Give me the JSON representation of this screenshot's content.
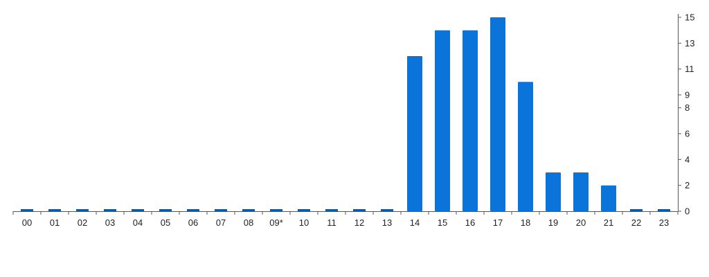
{
  "chart_data": {
    "type": "bar",
    "categories": [
      "00",
      "01",
      "02",
      "03",
      "04",
      "05",
      "06",
      "07",
      "08",
      "09*",
      "10",
      "11",
      "12",
      "13",
      "14",
      "15",
      "16",
      "17",
      "18",
      "19",
      "20",
      "21",
      "22",
      "23"
    ],
    "values": [
      0,
      0,
      0,
      0,
      0,
      0,
      0,
      0,
      0,
      0,
      0,
      0,
      0,
      0,
      12,
      14,
      14,
      15,
      10,
      3,
      3,
      2,
      0,
      0
    ],
    "title": "",
    "xlabel": "",
    "ylabel": "",
    "ylim": [
      0,
      15
    ],
    "y_ticks": [
      "0",
      "2",
      "4",
      "6",
      "8",
      "9",
      "11",
      "13",
      "15"
    ],
    "y_axis_side": "right",
    "grid": false,
    "legend": "none",
    "bar_color": "#0a74da",
    "zero_marker_color": "#0a5aa8",
    "axis_color": "#555555"
  }
}
